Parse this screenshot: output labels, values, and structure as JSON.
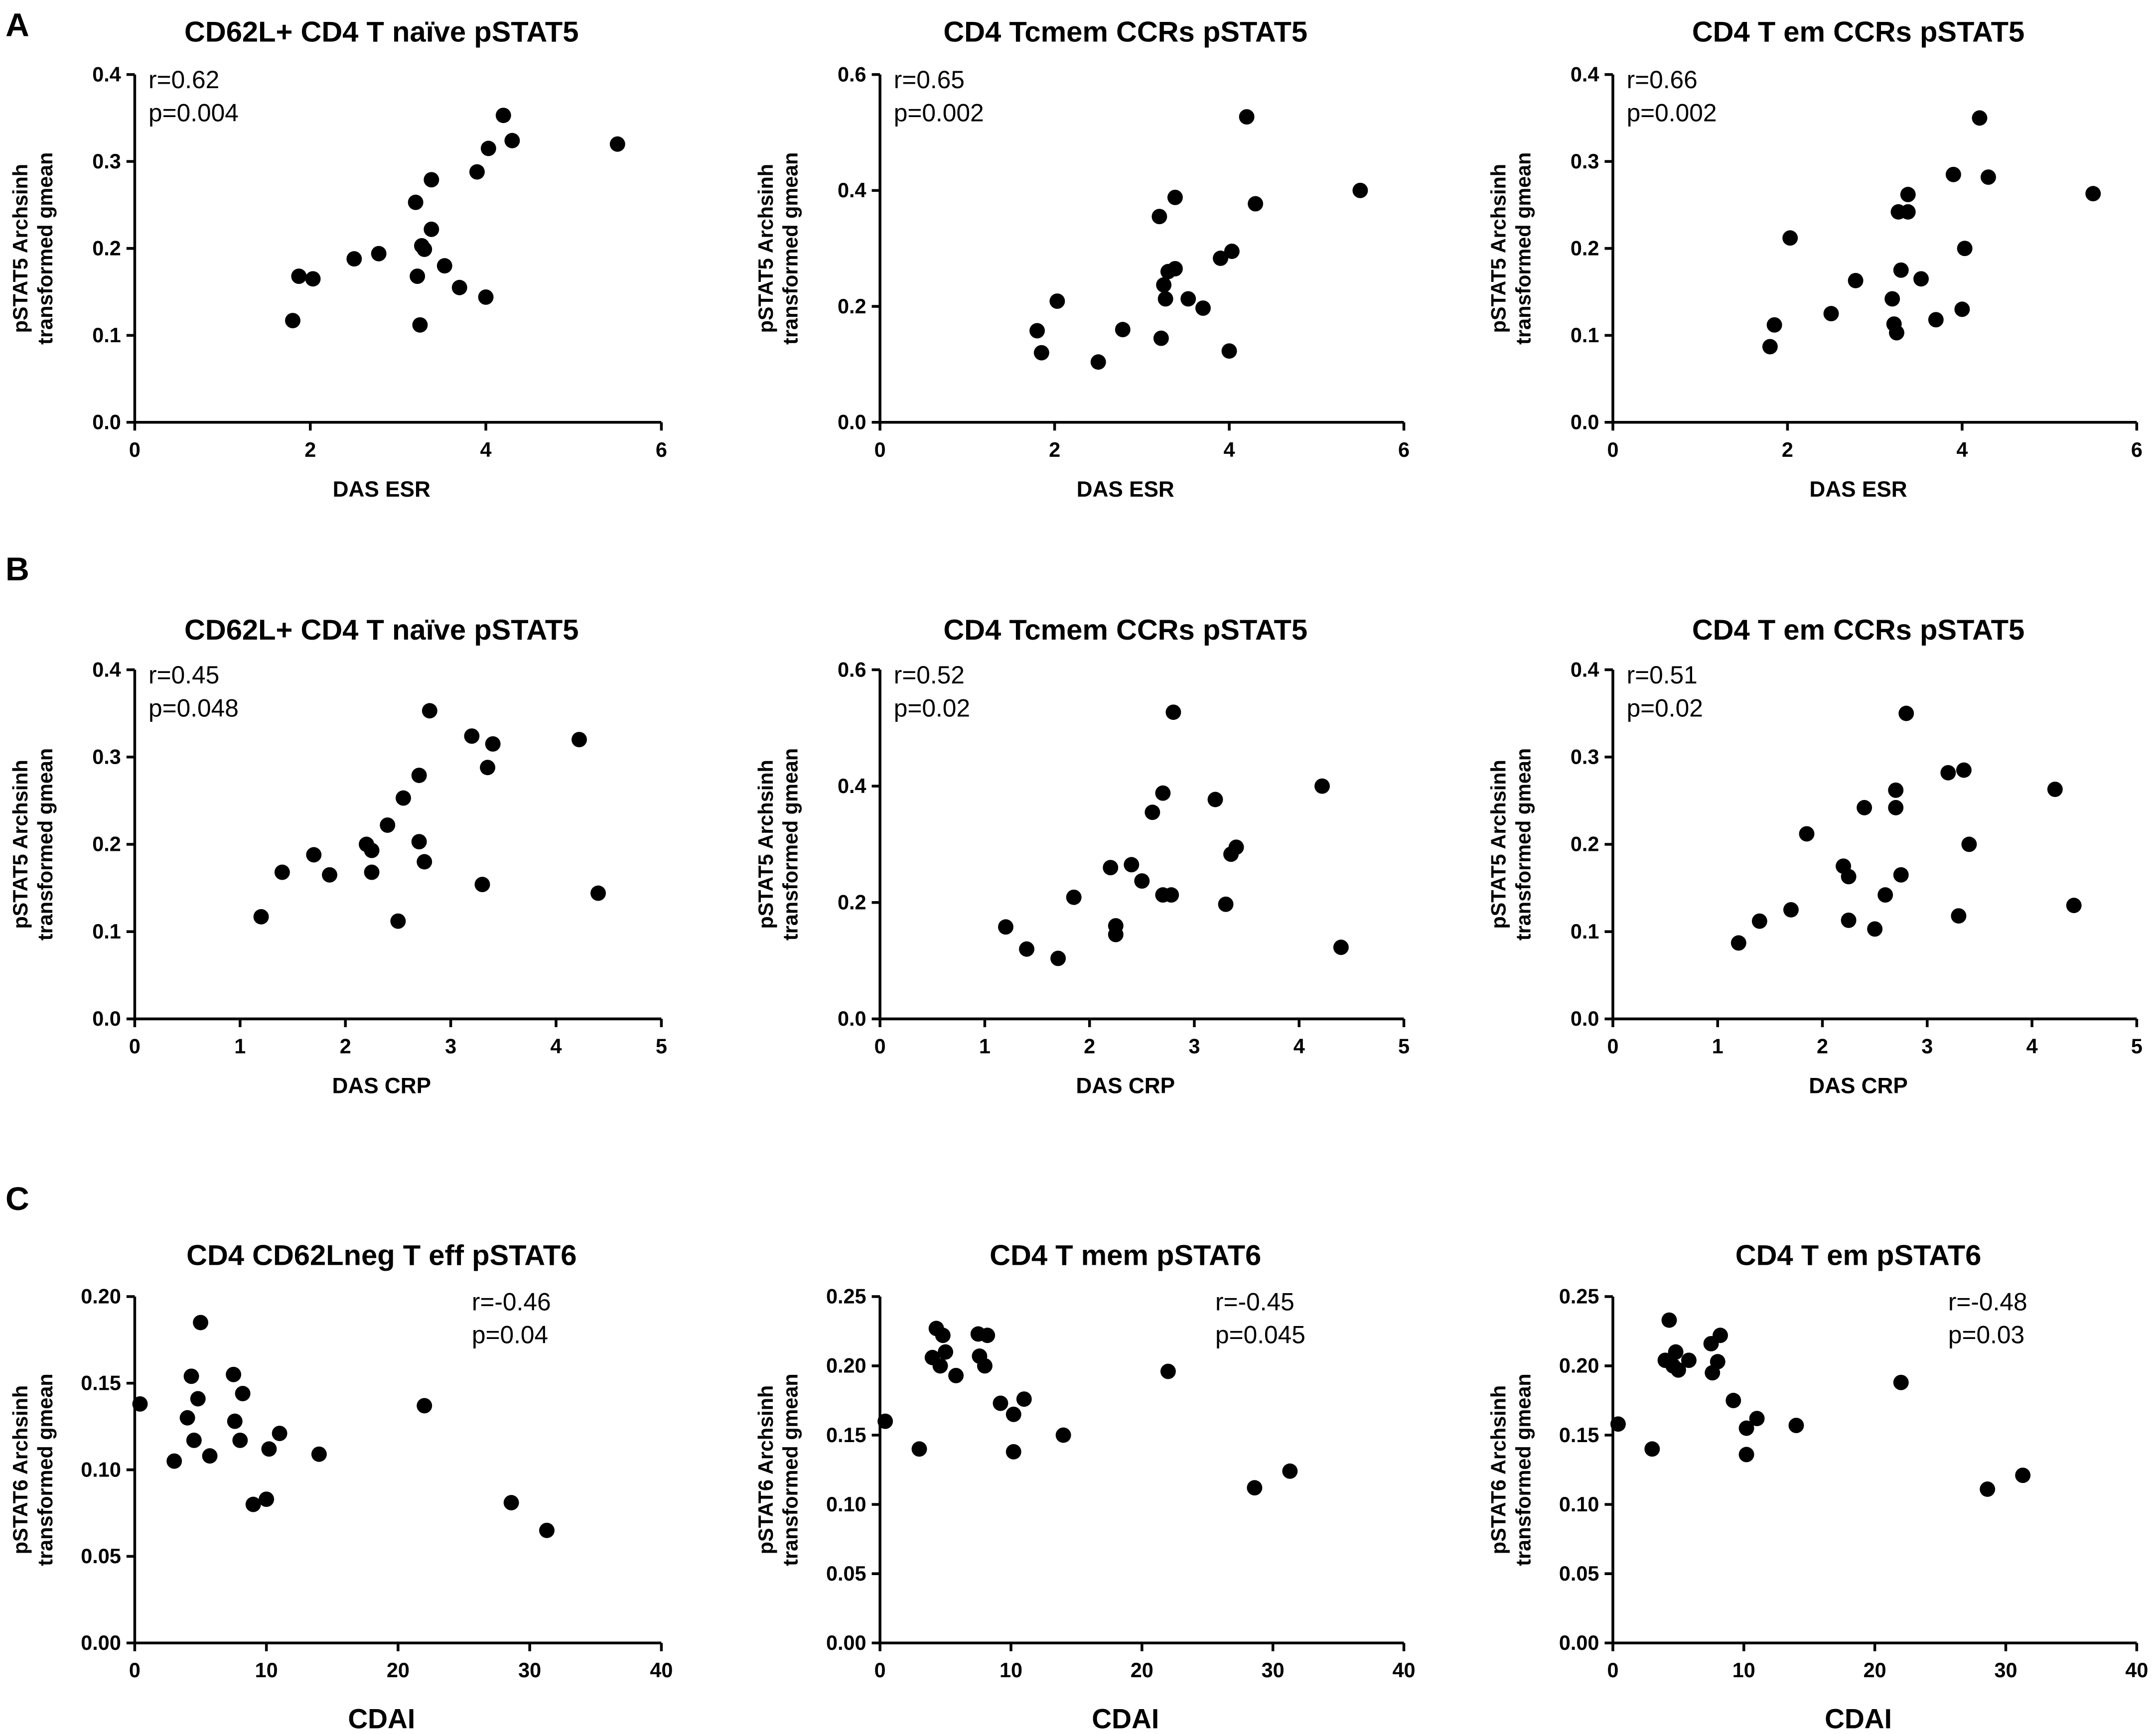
{
  "panel_letters": [
    "A",
    "B",
    "C"
  ],
  "chart_data": [
    {
      "type": "scatter",
      "panel": "A",
      "title": "CD62L+ CD4 T naïve pSTAT5",
      "xlabel": "DAS ESR",
      "ylabel": [
        "pSTAT5 Archsinh",
        "transformed gmean"
      ],
      "xlim": [
        0,
        6
      ],
      "ylim": [
        0,
        0.4
      ],
      "xticks": [
        "0",
        "2",
        "4",
        "6"
      ],
      "yticks": [
        "0.0",
        "0.1",
        "0.2",
        "0.3",
        "0.4"
      ],
      "stats": [
        "r=0.62",
        "p=0.004"
      ],
      "stats_pos": "top-left",
      "points": [
        [
          1.8,
          0.117
        ],
        [
          1.87,
          0.168
        ],
        [
          2.03,
          0.165
        ],
        [
          2.5,
          0.188
        ],
        [
          2.78,
          0.194
        ],
        [
          3.2,
          0.253
        ],
        [
          3.22,
          0.168
        ],
        [
          3.25,
          0.112
        ],
        [
          3.27,
          0.203
        ],
        [
          3.3,
          0.199
        ],
        [
          3.38,
          0.279
        ],
        [
          3.38,
          0.222
        ],
        [
          3.53,
          0.18
        ],
        [
          3.7,
          0.155
        ],
        [
          3.9,
          0.288
        ],
        [
          4.0,
          0.144
        ],
        [
          4.03,
          0.315
        ],
        [
          4.2,
          0.353
        ],
        [
          4.3,
          0.324
        ],
        [
          5.5,
          0.32
        ]
      ]
    },
    {
      "type": "scatter",
      "panel": "A",
      "title": "CD4 Tcmem CCRs pSTAT5",
      "xlabel": "DAS ESR",
      "ylabel": [
        "pSTAT5 Archsinh",
        "transformed gmean"
      ],
      "xlim": [
        0,
        6
      ],
      "ylim": [
        0,
        0.6
      ],
      "xticks": [
        "0",
        "2",
        "4",
        "6"
      ],
      "yticks": [
        "0.0",
        "0.2",
        "0.4",
        "0.6"
      ],
      "stats": [
        "r=0.65",
        "p=0.002"
      ],
      "stats_pos": "top-left",
      "points": [
        [
          1.8,
          0.158
        ],
        [
          1.85,
          0.12
        ],
        [
          2.03,
          0.209
        ],
        [
          2.5,
          0.104
        ],
        [
          2.78,
          0.16
        ],
        [
          3.2,
          0.355
        ],
        [
          3.22,
          0.145
        ],
        [
          3.25,
          0.237
        ],
        [
          3.27,
          0.213
        ],
        [
          3.3,
          0.26
        ],
        [
          3.38,
          0.265
        ],
        [
          3.38,
          0.388
        ],
        [
          3.53,
          0.213
        ],
        [
          3.7,
          0.197
        ],
        [
          3.9,
          0.283
        ],
        [
          4.0,
          0.123
        ],
        [
          4.03,
          0.295
        ],
        [
          4.2,
          0.527
        ],
        [
          4.3,
          0.377
        ],
        [
          5.5,
          0.4
        ]
      ]
    },
    {
      "type": "scatter",
      "panel": "A",
      "title": "CD4 T em CCRs pSTAT5",
      "xlabel": "DAS ESR",
      "ylabel": [
        "pSTAT5 Archsinh",
        "transformed gmean"
      ],
      "xlim": [
        0,
        6
      ],
      "ylim": [
        0,
        0.4
      ],
      "xticks": [
        "0",
        "2",
        "4",
        "6"
      ],
      "yticks": [
        "0.0",
        "0.1",
        "0.2",
        "0.3",
        "0.4"
      ],
      "stats": [
        "r=0.66",
        "p=0.002"
      ],
      "stats_pos": "top-left",
      "points": [
        [
          1.8,
          0.087
        ],
        [
          1.85,
          0.112
        ],
        [
          2.03,
          0.212
        ],
        [
          2.5,
          0.125
        ],
        [
          2.78,
          0.163
        ],
        [
          3.2,
          0.142
        ],
        [
          3.22,
          0.113
        ],
        [
          3.25,
          0.103
        ],
        [
          3.27,
          0.242
        ],
        [
          3.3,
          0.175
        ],
        [
          3.38,
          0.242
        ],
        [
          3.38,
          0.262
        ],
        [
          3.53,
          0.165
        ],
        [
          3.7,
          0.118
        ],
        [
          3.9,
          0.285
        ],
        [
          4.0,
          0.13
        ],
        [
          4.03,
          0.2
        ],
        [
          4.2,
          0.35
        ],
        [
          4.3,
          0.282
        ],
        [
          5.5,
          0.263
        ]
      ]
    },
    {
      "type": "scatter",
      "panel": "B",
      "title": "CD62L+ CD4 T naïve pSTAT5",
      "xlabel": "DAS CRP",
      "ylabel": [
        "pSTAT5 Archsinh",
        "transformed gmean"
      ],
      "xlim": [
        0,
        5
      ],
      "ylim": [
        0,
        0.4
      ],
      "xticks": [
        "0",
        "1",
        "2",
        "3",
        "4",
        "5"
      ],
      "yticks": [
        "0.0",
        "0.1",
        "0.2",
        "0.3",
        "0.4"
      ],
      "stats": [
        "r=0.45",
        "p=0.048"
      ],
      "stats_pos": "top-left",
      "points": [
        [
          1.2,
          0.117
        ],
        [
          1.4,
          0.168
        ],
        [
          1.7,
          0.188
        ],
        [
          1.85,
          0.165
        ],
        [
          2.2,
          0.2
        ],
        [
          2.25,
          0.193
        ],
        [
          2.25,
          0.168
        ],
        [
          2.4,
          0.222
        ],
        [
          2.5,
          0.112
        ],
        [
          2.55,
          0.253
        ],
        [
          2.7,
          0.279
        ],
        [
          2.7,
          0.203
        ],
        [
          2.8,
          0.353
        ],
        [
          2.75,
          0.18
        ],
        [
          3.2,
          0.324
        ],
        [
          3.3,
          0.154
        ],
        [
          3.35,
          0.288
        ],
        [
          3.4,
          0.315
        ],
        [
          4.22,
          0.32
        ],
        [
          4.4,
          0.144
        ]
      ]
    },
    {
      "type": "scatter",
      "panel": "B",
      "title": "CD4 Tcmem CCRs pSTAT5",
      "xlabel": "DAS CRP",
      "ylabel": [
        "pSTAT5 Archsinh",
        "transformed gmean"
      ],
      "xlim": [
        0,
        5
      ],
      "ylim": [
        0,
        0.6
      ],
      "xticks": [
        "0",
        "1",
        "2",
        "3",
        "4",
        "5"
      ],
      "yticks": [
        "0.0",
        "0.2",
        "0.4",
        "0.6"
      ],
      "stats": [
        "r=0.52",
        "p=0.02"
      ],
      "stats_pos": "top-left",
      "points": [
        [
          1.2,
          0.158
        ],
        [
          1.4,
          0.12
        ],
        [
          1.7,
          0.104
        ],
        [
          1.85,
          0.209
        ],
        [
          2.2,
          0.26
        ],
        [
          2.25,
          0.16
        ],
        [
          2.25,
          0.145
        ],
        [
          2.4,
          0.265
        ],
        [
          2.5,
          0.237
        ],
        [
          2.6,
          0.355
        ],
        [
          2.7,
          0.388
        ],
        [
          2.7,
          0.213
        ],
        [
          2.8,
          0.527
        ],
        [
          2.78,
          0.213
        ],
        [
          3.2,
          0.377
        ],
        [
          3.3,
          0.197
        ],
        [
          3.35,
          0.283
        ],
        [
          3.4,
          0.295
        ],
        [
          4.22,
          0.4
        ],
        [
          4.4,
          0.123
        ]
      ]
    },
    {
      "type": "scatter",
      "panel": "B",
      "title": "CD4 T em CCRs pSTAT5",
      "xlabel": "DAS CRP",
      "ylabel": [
        "pSTAT5 Archsinh",
        "transformed gmean"
      ],
      "xlim": [
        0,
        5
      ],
      "ylim": [
        0,
        0.4
      ],
      "xticks": [
        "0",
        "1",
        "2",
        "3",
        "4",
        "5"
      ],
      "yticks": [
        "0.0",
        "0.1",
        "0.2",
        "0.3",
        "0.4"
      ],
      "stats": [
        "r=0.51",
        "p=0.02"
      ],
      "stats_pos": "top-left",
      "points": [
        [
          1.2,
          0.087
        ],
        [
          1.4,
          0.112
        ],
        [
          1.7,
          0.125
        ],
        [
          1.85,
          0.212
        ],
        [
          2.2,
          0.175
        ],
        [
          2.25,
          0.163
        ],
        [
          2.25,
          0.113
        ],
        [
          2.4,
          0.242
        ],
        [
          2.5,
          0.103
        ],
        [
          2.6,
          0.142
        ],
        [
          2.7,
          0.262
        ],
        [
          2.7,
          0.242
        ],
        [
          2.8,
          0.35
        ],
        [
          2.75,
          0.165
        ],
        [
          3.2,
          0.282
        ],
        [
          3.3,
          0.118
        ],
        [
          3.35,
          0.285
        ],
        [
          3.4,
          0.2
        ],
        [
          4.22,
          0.263
        ],
        [
          4.4,
          0.13
        ]
      ]
    },
    {
      "type": "scatter",
      "panel": "C",
      "title": "CD4 CD62Lneg T eff pSTAT6",
      "xlabel": "CDAI",
      "ylabel": [
        "pSTAT6 Archsinh",
        "transformed gmean"
      ],
      "xlim": [
        0,
        40
      ],
      "ylim": [
        0,
        0.2
      ],
      "xticks": [
        "0",
        "10",
        "20",
        "30",
        "40"
      ],
      "yticks": [
        "0.00",
        "0.05",
        "0.10",
        "0.15",
        "0.20"
      ],
      "stats": [
        "r=-0.46",
        "p=0.04"
      ],
      "stats_pos": "top-right",
      "points": [
        [
          0.4,
          0.138
        ],
        [
          3,
          0.105
        ],
        [
          4,
          0.13
        ],
        [
          4.3,
          0.154
        ],
        [
          4.5,
          0.117
        ],
        [
          4.8,
          0.141
        ],
        [
          5,
          0.185
        ],
        [
          5.7,
          0.108
        ],
        [
          7.5,
          0.155
        ],
        [
          7.6,
          0.128
        ],
        [
          8,
          0.117
        ],
        [
          8.2,
          0.144
        ],
        [
          9,
          0.08
        ],
        [
          10,
          0.083
        ],
        [
          10.2,
          0.112
        ],
        [
          11,
          0.121
        ],
        [
          14,
          0.109
        ],
        [
          22,
          0.137
        ],
        [
          28.6,
          0.081
        ],
        [
          31.3,
          0.065
        ]
      ]
    },
    {
      "type": "scatter",
      "panel": "C",
      "title": "CD4 T mem pSTAT6",
      "xlabel": "CDAI",
      "ylabel": [
        "pSTAT6 Archsinh",
        "transformed gmean"
      ],
      "xlim": [
        0,
        40
      ],
      "ylim": [
        0,
        0.25
      ],
      "xticks": [
        "0",
        "10",
        "20",
        "30",
        "40"
      ],
      "yticks": [
        "0.00",
        "0.05",
        "0.10",
        "0.15",
        "0.20",
        "0.25"
      ],
      "stats": [
        "r=-0.45",
        "p=0.045"
      ],
      "stats_pos": "top-right",
      "points": [
        [
          0.4,
          0.16
        ],
        [
          3,
          0.14
        ],
        [
          4,
          0.206
        ],
        [
          4.3,
          0.227
        ],
        [
          4.6,
          0.2
        ],
        [
          4.8,
          0.222
        ],
        [
          5,
          0.21
        ],
        [
          5.8,
          0.193
        ],
        [
          7.5,
          0.223
        ],
        [
          7.6,
          0.207
        ],
        [
          8,
          0.2
        ],
        [
          8.2,
          0.222
        ],
        [
          9.2,
          0.173
        ],
        [
          10.2,
          0.138
        ],
        [
          10.2,
          0.165
        ],
        [
          11,
          0.176
        ],
        [
          14,
          0.15
        ],
        [
          22,
          0.196
        ],
        [
          28.6,
          0.112
        ],
        [
          31.3,
          0.124
        ]
      ]
    },
    {
      "type": "scatter",
      "panel": "C",
      "title": "CD4 T em pSTAT6",
      "xlabel": "CDAI",
      "ylabel": [
        "pSTAT6 Archsinh",
        "transformed gmean"
      ],
      "xlim": [
        0,
        40
      ],
      "ylim": [
        0,
        0.25
      ],
      "xticks": [
        "0",
        "10",
        "20",
        "30",
        "40"
      ],
      "yticks": [
        "0.00",
        "0.05",
        "0.10",
        "0.15",
        "0.20",
        "0.25"
      ],
      "stats": [
        "r=-0.48",
        "p=0.03"
      ],
      "stats_pos": "top-right",
      "points": [
        [
          0.4,
          0.158
        ],
        [
          3,
          0.14
        ],
        [
          4,
          0.204
        ],
        [
          4.3,
          0.233
        ],
        [
          4.6,
          0.2
        ],
        [
          4.8,
          0.21
        ],
        [
          5,
          0.197
        ],
        [
          5.8,
          0.204
        ],
        [
          7.5,
          0.216
        ],
        [
          7.6,
          0.195
        ],
        [
          8,
          0.203
        ],
        [
          8.2,
          0.222
        ],
        [
          9.2,
          0.175
        ],
        [
          10.2,
          0.136
        ],
        [
          10.2,
          0.155
        ],
        [
          11,
          0.162
        ],
        [
          14,
          0.157
        ],
        [
          22,
          0.188
        ],
        [
          28.6,
          0.111
        ],
        [
          31.3,
          0.121
        ]
      ]
    }
  ]
}
